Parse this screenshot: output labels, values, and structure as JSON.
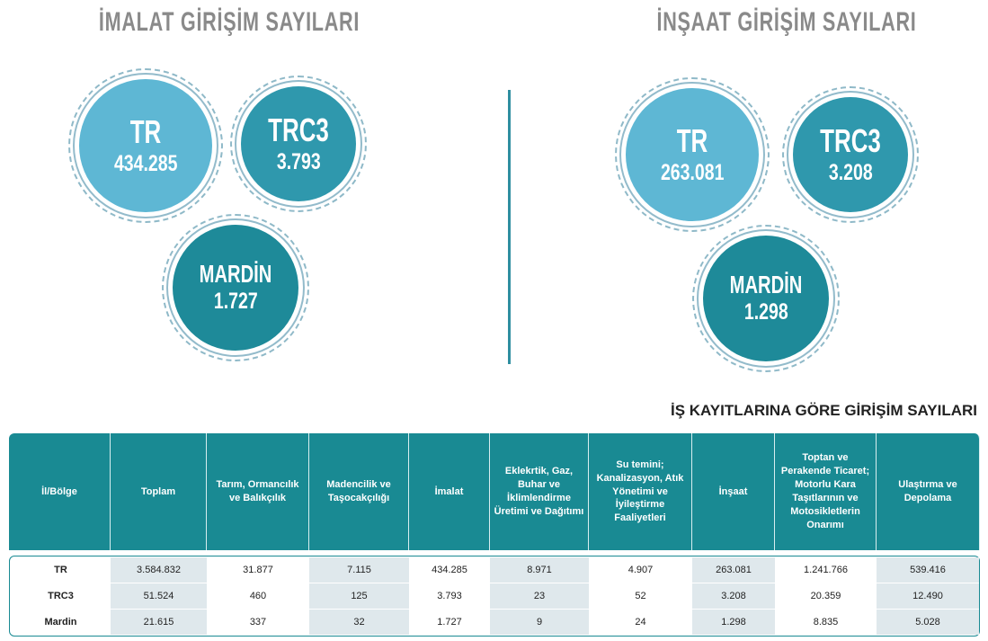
{
  "sections": [
    {
      "title": "İMALAT GİRİŞİM SAYILARI",
      "circles": [
        {
          "label": "TR",
          "value": "434.285"
        },
        {
          "label": "TRC3",
          "value": "3.793"
        },
        {
          "label": "MARDİN",
          "value": "1.727"
        }
      ]
    },
    {
      "title": "İNŞAAT GİRİŞİM SAYILARI",
      "circles": [
        {
          "label": "TR",
          "value": "263.081"
        },
        {
          "label": "TRC3",
          "value": "3.208"
        },
        {
          "label": "MARDİN",
          "value": "1.298"
        }
      ]
    }
  ],
  "table": {
    "title": "İŞ KAYITLARINA GÖRE GİRİŞİM SAYILARI",
    "header": [
      "İl/Bölge",
      "Toplam",
      "Tarım, Ormancılık ve Balıkçılık",
      "Madencilik ve Taşocakçılığı",
      "İmalat",
      "Eklekrtik, Gaz, Buhar ve İklimlendirme Üretimi ve Dağıtımı",
      "Su temini; Kanalizasyon, Atık Yönetimi ve İyileştirme Faaliyetleri",
      "İnşaat",
      "Toptan ve Perakende Ticaret; Motorlu Kara Taşıtlarının ve Motosikletlerin Onarımı",
      "Ulaştırma ve Depolama"
    ],
    "rows": [
      [
        "TR",
        "3.584.832",
        "31.877",
        "7.115",
        "434.285",
        "8.971",
        "4.907",
        "263.081",
        "1.241.766",
        "539.416"
      ],
      [
        "TRC3",
        "51.524",
        "460",
        "125",
        "3.793",
        "23",
        "52",
        "3.208",
        "20.359",
        "12.490"
      ],
      [
        "Mardin",
        "21.615",
        "337",
        "32",
        "1.727",
        "9",
        "24",
        "1.298",
        "8.835",
        "5.028"
      ]
    ]
  }
}
